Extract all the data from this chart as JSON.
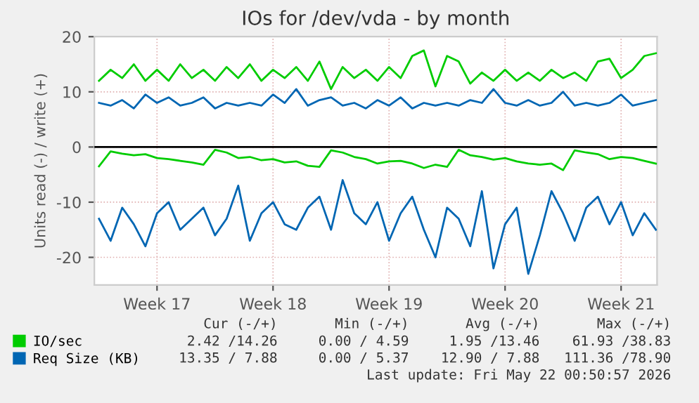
{
  "chart_data": {
    "type": "line",
    "title": "IOs for /dev/vda - by month",
    "ylabel": "Units read (-) / write (+)",
    "categories": [
      null,
      null,
      null,
      null,
      null,
      "Week 17",
      null,
      null,
      null,
      null,
      null,
      null,
      null,
      null,
      null,
      "Week 18",
      null,
      null,
      null,
      null,
      null,
      null,
      null,
      null,
      null,
      "Week 19",
      null,
      null,
      null,
      null,
      null,
      null,
      null,
      null,
      null,
      "Week 20",
      null,
      null,
      null,
      null,
      null,
      null,
      null,
      null,
      null,
      "Week 21",
      null,
      null,
      null
    ],
    "series": [
      {
        "name": "IO/sec",
        "color": "#00cc00",
        "values": [
          12,
          14,
          12.5,
          15,
          12,
          14,
          12,
          15,
          12.5,
          14,
          12,
          14.5,
          12.5,
          15,
          12,
          14,
          12.5,
          14.5,
          12,
          15.5,
          10.5,
          14.5,
          12.5,
          14,
          12,
          14.5,
          12.5,
          16.5,
          17.5,
          11,
          16.5,
          15.5,
          11.5,
          13.5,
          12,
          14,
          12,
          13.5,
          12,
          14,
          12.5,
          13.5,
          12,
          15.5,
          16,
          12.5,
          14,
          16.5,
          17
        ]
      },
      {
        "color": "#00cc00",
        "values": [
          -3.5,
          -0.8,
          -1.2,
          -1.5,
          -1.3,
          -2.0,
          -2.2,
          -2.5,
          -2.8,
          -3.2,
          -0.5,
          -1.0,
          -2.0,
          -1.8,
          -2.4,
          -2.2,
          -2.8,
          -2.6,
          -3.4,
          -3.6,
          -0.6,
          -1.0,
          -1.8,
          -2.2,
          -3.0,
          -2.6,
          -2.5,
          -3.0,
          -3.8,
          -3.2,
          -3.6,
          -0.5,
          -1.5,
          -1.8,
          -2.3,
          -2.0,
          -2.6,
          -3.0,
          -3.2,
          -3.0,
          -4.2,
          -0.6,
          -1.0,
          -1.3,
          -2.2,
          -1.8,
          -2.0,
          -2.5,
          -3.0
        ]
      },
      {
        "name": "Req Size (KB)",
        "color": "#0066b3",
        "values": [
          8,
          7.5,
          8.5,
          7,
          9.5,
          8,
          9,
          7.5,
          8,
          9,
          7,
          8,
          7.5,
          8,
          7.5,
          9.5,
          8,
          10.5,
          7.5,
          8.5,
          9,
          7.5,
          8,
          7,
          8.5,
          7.5,
          9,
          7,
          8,
          7.5,
          8,
          7.5,
          8.5,
          8,
          10.5,
          8,
          7.5,
          8.5,
          7.5,
          8,
          10,
          7.5,
          8,
          7.5,
          8,
          9.5,
          7.5,
          8,
          8.5
        ]
      },
      {
        "color": "#0066b3",
        "values": [
          -13,
          -17,
          -11,
          -14,
          -18,
          -12,
          -10,
          -15,
          -13,
          -11,
          -16,
          -13,
          -7,
          -17,
          -12,
          -10,
          -14,
          -15,
          -11,
          -9,
          -15,
          -6,
          -12,
          -14,
          -10,
          -17,
          -12,
          -9,
          -15,
          -20,
          -11,
          -13,
          -18,
          -8,
          -22,
          -14,
          -11,
          -23,
          -16,
          -8,
          -12,
          -17,
          -11,
          -9,
          -14,
          -10,
          -16,
          -12,
          -15
        ]
      }
    ],
    "ylim": [
      -25,
      20
    ],
    "yticks": [
      -20,
      -10,
      0,
      10,
      20
    ],
    "ref_lines": [
      {
        "axis": "y",
        "value": 0,
        "color": "#000000"
      }
    ],
    "grid": true,
    "legend": "bottom",
    "line_style": "solid",
    "marker": "none",
    "annotations": [
      "Cur (-/+)",
      "Min (-/+)",
      "Avg (-/+)",
      "Max (-/+)",
      "2.42 /14.26",
      "0.00 / 4.59",
      "1.95 /13.46",
      "61.93 /38.83",
      "13.35 / 7.88",
      "0.00 / 5.37",
      "12.90 / 7.88",
      "111.36 /78.90",
      "Last update: Fri May 22 00:50:57 2026"
    ]
  }
}
